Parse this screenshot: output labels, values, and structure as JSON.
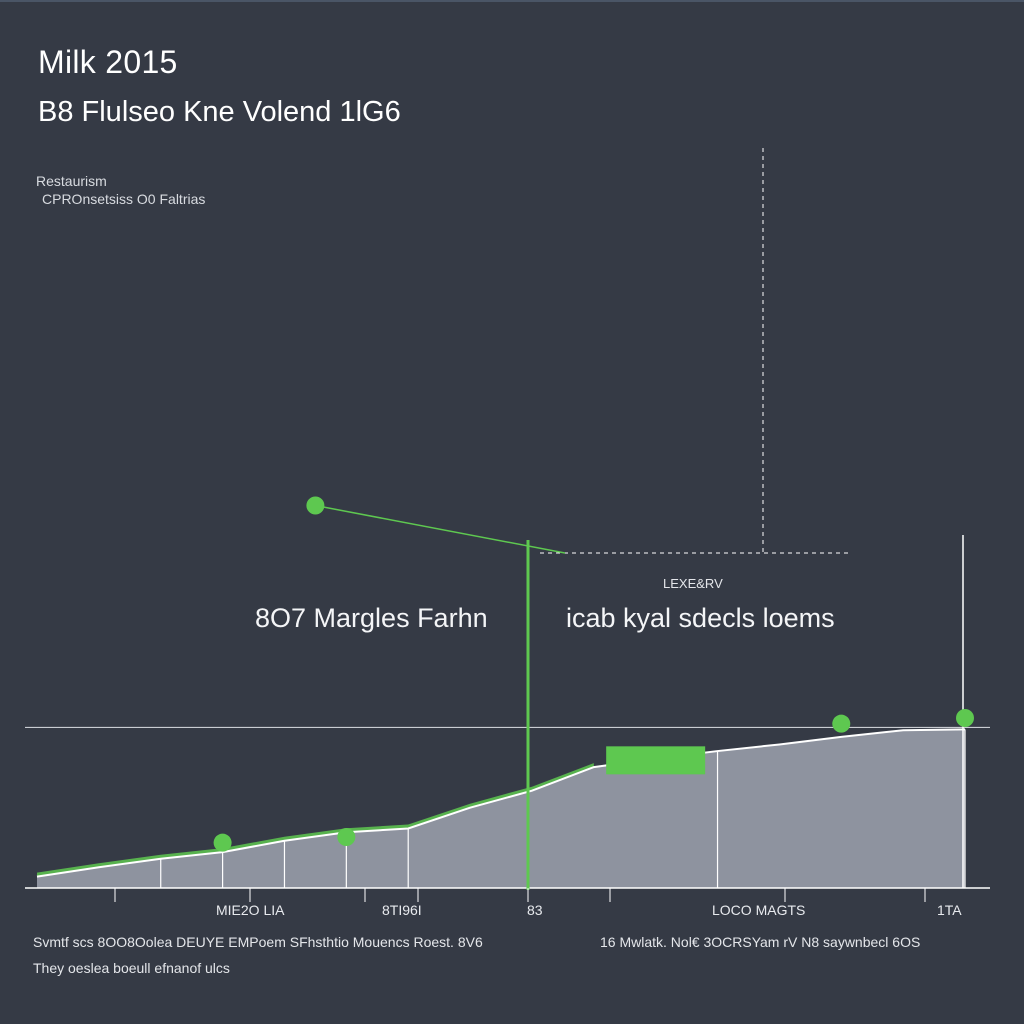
{
  "title": "Milk 2015",
  "subtitle": "B8 Flulseo Kne Volend  1lG6",
  "notes": [
    "Restaurism",
    "CPROnsetsiss O0 Faltrias"
  ],
  "annotations": {
    "left_label": "8O7 Margles  Farhn",
    "right_label": "icab kyal sdecls loems",
    "small_label": "LEXE&RV"
  },
  "footer": {
    "line1": "Svmtf scs  8OO8Oolea  DEUYE EMPoem SFhsthtio Mouencs Roest. 8V6",
    "line2": "16 Mwlatk. Nol€ 3OCRSYam rV N8 saywnbecl 6OS",
    "line3": "They oeslea boeull efnanof ulcs"
  },
  "colors": {
    "background": "#353a45",
    "area_fill": "#8e939f",
    "accent_green": "#5ec850",
    "line_white": "#ffffff"
  },
  "chart_data": {
    "type": "area",
    "x_tick_labels": [
      "MIE2O LIA",
      "8TI96I",
      "83",
      "LOCO MAGTS",
      "1TA"
    ],
    "series": [
      {
        "x": [
          0,
          1,
          2,
          3,
          4,
          5,
          6,
          7,
          8,
          9,
          10,
          11,
          12,
          13,
          14,
          15
        ],
        "y": [
          12,
          22,
          31,
          38,
          50,
          59,
          63,
          85,
          103,
          128,
          137,
          145,
          152,
          160,
          167,
          168
        ]
      }
    ],
    "highlight_points": [
      {
        "x": 3,
        "y": 48
      },
      {
        "x": 5,
        "y": 54
      },
      {
        "x": 13,
        "y": 174
      },
      {
        "x": 15,
        "y": 180
      },
      {
        "x": 4.5,
        "y": 405
      }
    ],
    "highlight_bar": {
      "x0": 9.2,
      "x1": 10.8,
      "y": 150
    },
    "reference_value": 170,
    "grid": false
  }
}
